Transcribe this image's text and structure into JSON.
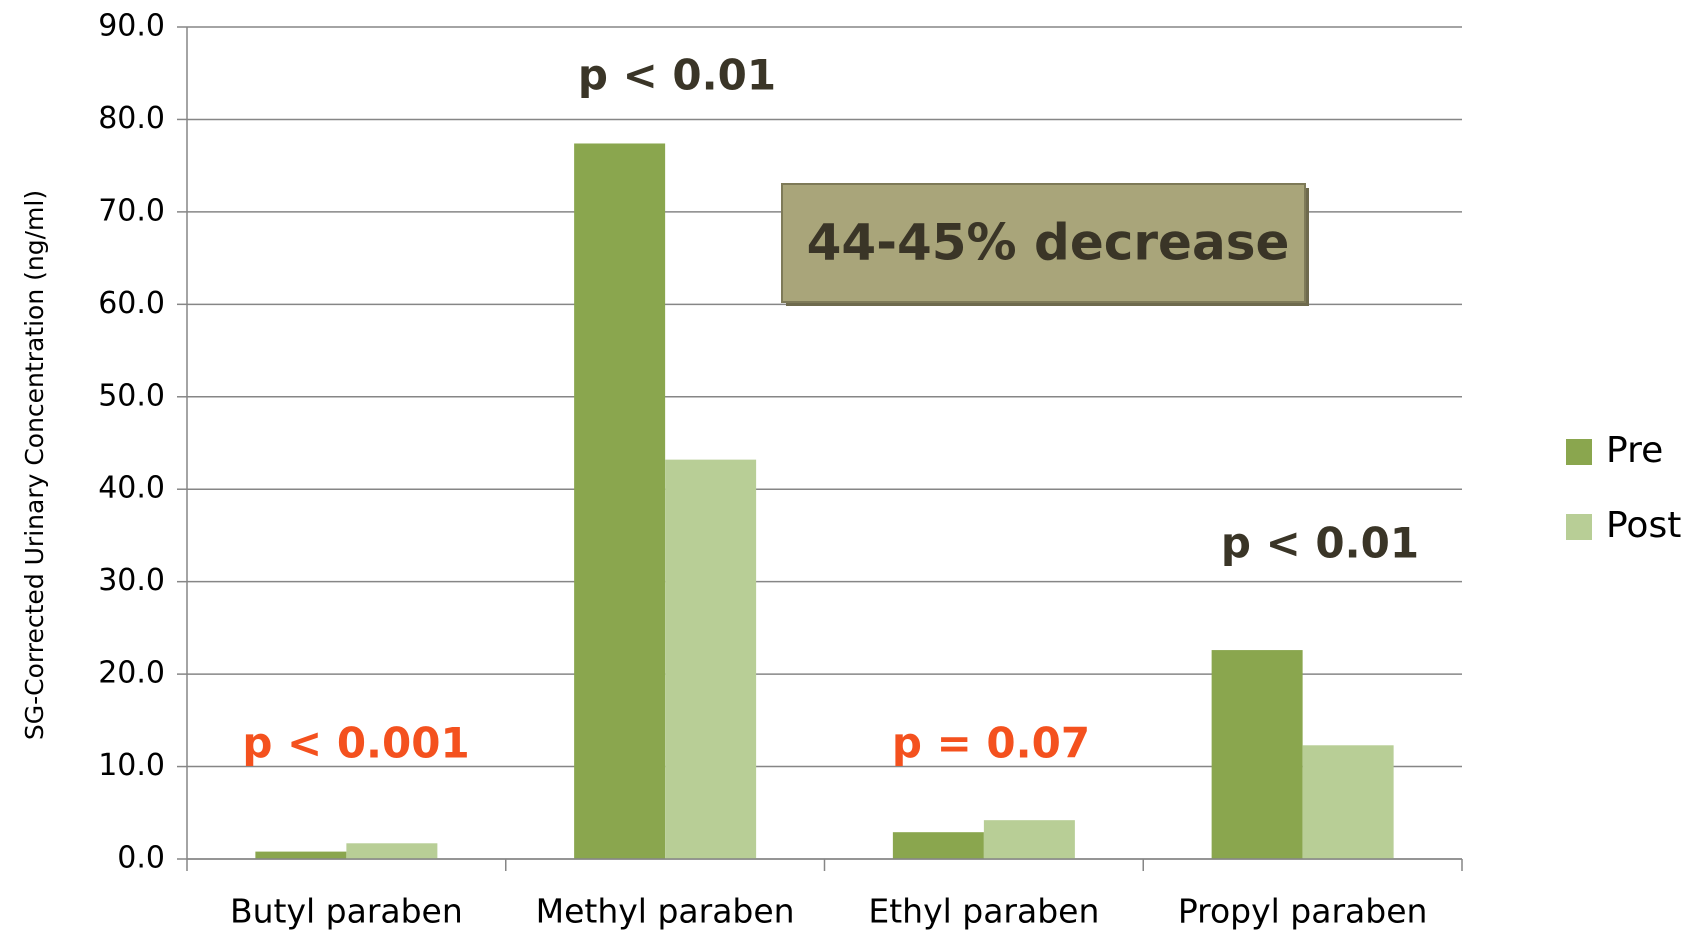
{
  "chart_data": {
    "type": "bar",
    "y_label": "SG-Corrected Urinary Concentration (ng/ml)",
    "categories": [
      "Butyl paraben",
      "Methyl paraben",
      "Ethyl paraben",
      "Propyl paraben"
    ],
    "series": [
      {
        "name": "Pre",
        "color": "#8aa64e",
        "values": [
          0.8,
          77.4,
          2.9,
          22.6
        ]
      },
      {
        "name": "Post",
        "color": "#b8ce96",
        "values": [
          1.7,
          43.2,
          4.2,
          12.3
        ]
      }
    ],
    "ylim": [
      0,
      90
    ],
    "yticks": [
      {
        "value": 0,
        "label": "0.0"
      },
      {
        "value": 10,
        "label": "10.0"
      },
      {
        "value": 20,
        "label": "20.0"
      },
      {
        "value": 30,
        "label": "30.0"
      },
      {
        "value": 40,
        "label": "40.0"
      },
      {
        "value": 50,
        "label": "50.0"
      },
      {
        "value": 60,
        "label": "60.0"
      },
      {
        "value": 70,
        "label": "70.0"
      },
      {
        "value": 80,
        "label": "80.0"
      },
      {
        "value": 90,
        "label": "90.0"
      }
    ],
    "grid": true,
    "legend": "right",
    "annotations": [
      {
        "text": "p < 0.001",
        "color": "#f4511e"
      },
      {
        "text": "p < 0.01",
        "color": "#3a3527"
      },
      {
        "text": "44-45% decrease",
        "color": "#3a3527"
      },
      {
        "text": "p = 0.07",
        "color": "#f4511e"
      },
      {
        "text": "p < 0.01",
        "color": "#3a3527"
      }
    ]
  }
}
